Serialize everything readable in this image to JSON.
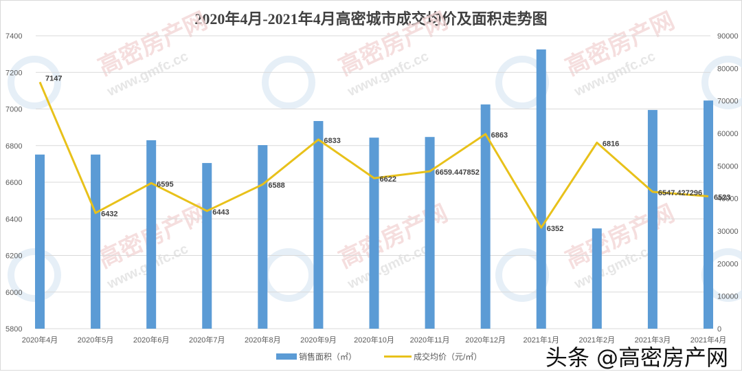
{
  "title": "2020年4月-2021年4月高密城市成交均价及面积走势图",
  "colors": {
    "bar": "#5b9bd5",
    "line": "#e8c11a",
    "grid": "#d9d9d9",
    "axis_text": "#595959"
  },
  "legend": {
    "bar_label": "销售面积（㎡）",
    "line_label": "成交均价（元/㎡）"
  },
  "credit": "头条 @高密房产网",
  "watermark": {
    "brand": "高密房产网",
    "url": "www.gmfc.cc"
  },
  "chart_data": {
    "type": "bar+line",
    "title": "2020年4月-2021年4月高密城市成交均价及面积走势图",
    "categories": [
      "2020年4月",
      "2020年5月",
      "2020年6月",
      "2020年7月",
      "2020年8月",
      "2020年9月",
      "2020年10月",
      "2020年11月",
      "2020年12月",
      "2021年1月",
      "2021年2月",
      "2021年3月",
      "2021年4月"
    ],
    "series": [
      {
        "name": "销售面积（㎡）",
        "type": "bar",
        "axis": "right",
        "values": [
          53500,
          53500,
          57900,
          50900,
          56400,
          63800,
          58700,
          58900,
          68900,
          85800,
          30800,
          67200,
          70100
        ]
      },
      {
        "name": "成交均价（元/㎡）",
        "type": "line",
        "axis": "left",
        "values": [
          7147,
          6432,
          6595,
          6443,
          6588,
          6833,
          6622,
          6659.447852,
          6863,
          6352,
          6816,
          6547.427296,
          6523
        ],
        "labels": [
          "7147",
          "6432",
          "6595",
          "6443",
          "6588",
          "6833",
          "6622",
          "6659.447852",
          "6863",
          "6352",
          "6816",
          "6547.427296",
          "6523"
        ]
      }
    ],
    "left_axis": {
      "ylim": [
        5800,
        7400
      ],
      "ticks": [
        5800,
        6000,
        6200,
        6400,
        6600,
        6800,
        7000,
        7200,
        7400
      ]
    },
    "right_axis": {
      "ylim": [
        0,
        90000
      ],
      "ticks": [
        0,
        10000,
        20000,
        30000,
        40000,
        50000,
        60000,
        70000,
        80000,
        90000
      ]
    },
    "grid": true,
    "legend_position": "bottom"
  }
}
